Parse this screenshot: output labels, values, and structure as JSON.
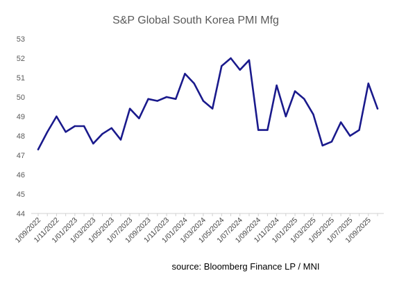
{
  "chart_data": {
    "type": "line",
    "title": "S&P Global South Korea PMI Mfg",
    "source": "source: Bloomberg Finance LP / MNI",
    "xlabel": "",
    "ylabel": "",
    "ylim": [
      44,
      53
    ],
    "yticks": [
      44,
      45,
      46,
      47,
      48,
      49,
      50,
      51,
      52,
      53
    ],
    "grid": false,
    "legend": "none",
    "line_color": "#1a1a8c",
    "x": [
      "1/09/2022",
      "1/10/2022",
      "1/11/2022",
      "1/12/2022",
      "1/01/2023",
      "1/02/2023",
      "1/03/2023",
      "1/04/2023",
      "1/05/2023",
      "1/06/2023",
      "1/07/2023",
      "1/08/2023",
      "1/09/2023",
      "1/10/2023",
      "1/11/2023",
      "1/12/2023",
      "1/01/2024",
      "1/02/2024",
      "1/03/2024",
      "1/04/2024",
      "1/05/2024",
      "1/06/2024",
      "1/07/2024",
      "1/08/2024",
      "1/09/2024",
      "1/10/2024",
      "1/11/2024",
      "1/12/2024",
      "1/01/2025",
      "1/02/2025",
      "1/03/2025",
      "1/04/2025",
      "1/05/2025",
      "1/06/2025",
      "1/07/2025",
      "1/08/2025",
      "1/09/2025",
      "1/10/2025"
    ],
    "xtick_labels": [
      "1/09/2022",
      "1/11/2022",
      "1/01/2023",
      "1/03/2023",
      "1/05/2023",
      "1/07/2023",
      "1/09/2023",
      "1/11/2023",
      "1/01/2024",
      "1/03/2024",
      "1/05/2024",
      "1/07/2024",
      "1/09/2024",
      "1/11/2024",
      "1/01/2025",
      "1/03/2025",
      "1/05/2025",
      "1/07/2025",
      "1/09/2025"
    ],
    "series": [
      {
        "values": [
          47.3,
          48.2,
          49.0,
          48.2,
          48.5,
          48.5,
          47.6,
          48.1,
          48.4,
          47.8,
          49.4,
          48.9,
          49.9,
          49.8,
          50.0,
          49.9,
          51.2,
          50.7,
          49.8,
          49.4,
          51.6,
          52.0,
          51.4,
          51.9,
          48.3,
          48.3,
          50.6,
          49.0,
          50.3,
          49.9,
          49.1,
          47.5,
          47.7,
          48.7,
          48.0,
          48.3,
          50.7,
          49.4
        ]
      }
    ]
  }
}
